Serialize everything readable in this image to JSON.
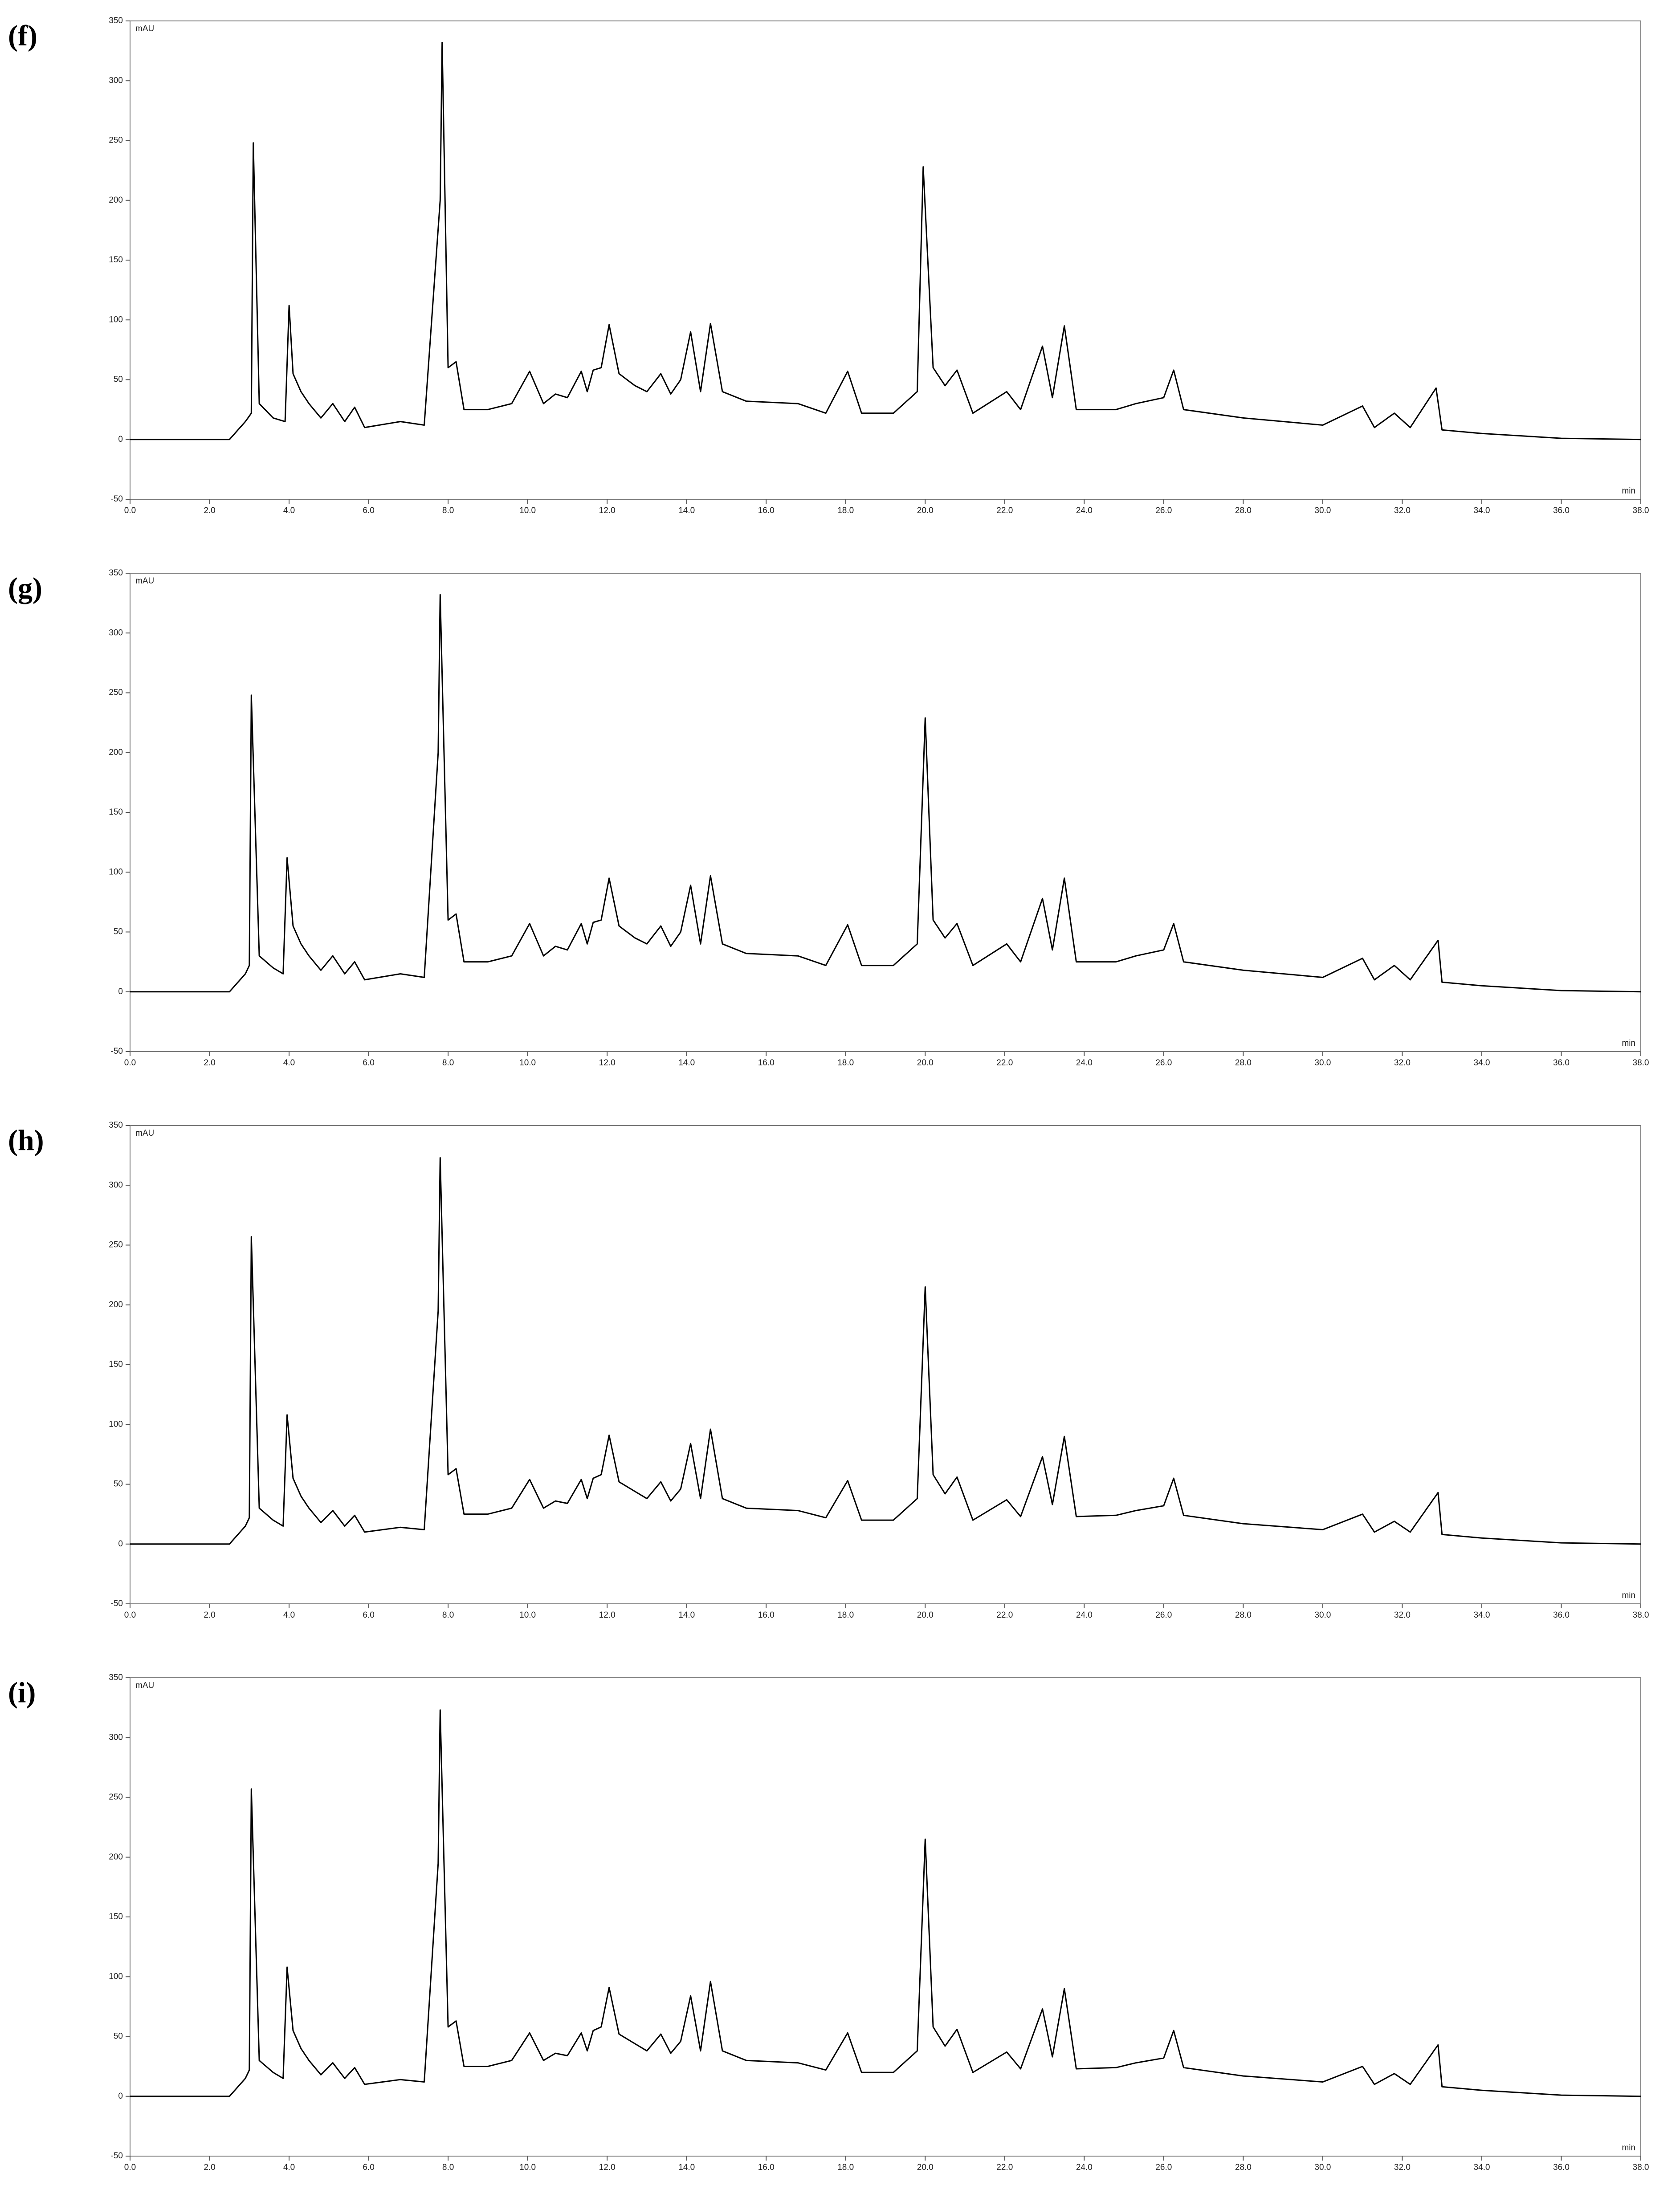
{
  "chart_data": [
    {
      "type": "line",
      "panel_label": "(f)",
      "ylabel": "mAU",
      "xlabel": "min",
      "xlim": [
        0,
        38
      ],
      "ylim": [
        -50,
        350
      ],
      "yticks": [
        -50,
        0,
        50,
        100,
        150,
        200,
        250,
        300,
        350
      ],
      "xticks": [
        {
          "value": 0,
          "label": "0.0"
        },
        {
          "value": 2,
          "label": "2.0"
        },
        {
          "value": 4,
          "label": "4.0"
        },
        {
          "value": 6,
          "label": "6.0"
        },
        {
          "value": 8,
          "label": "8.0"
        },
        {
          "value": 10,
          "label": "10.0"
        },
        {
          "value": 12,
          "label": "12.0"
        },
        {
          "value": 14,
          "label": "14.0"
        },
        {
          "value": 16,
          "label": "16.0"
        },
        {
          "value": 18,
          "label": "18.0"
        },
        {
          "value": 20,
          "label": "20.0"
        },
        {
          "value": 22,
          "label": "22.0"
        },
        {
          "value": 24,
          "label": "24.0"
        },
        {
          "value": 26,
          "label": "26.0"
        },
        {
          "value": 28,
          "label": "28.0"
        },
        {
          "value": 30,
          "label": "30.0"
        },
        {
          "value": 32,
          "label": "32.0"
        },
        {
          "value": 34,
          "label": "34.0"
        },
        {
          "value": 36,
          "label": "36.0"
        },
        {
          "value": 38,
          "label": "38.0"
        }
      ],
      "color": "#000000",
      "x": [
        0,
        2.5,
        2.9,
        3.05,
        3.1,
        3.25,
        3.6,
        3.9,
        4.0,
        4.1,
        4.3,
        4.5,
        4.8,
        5.1,
        5.4,
        5.65,
        5.9,
        6.8,
        7.4,
        7.8,
        7.85,
        8.0,
        8.2,
        8.4,
        9.0,
        9.6,
        10.05,
        10.4,
        10.7,
        11.0,
        11.35,
        11.5,
        11.65,
        11.85,
        12.05,
        12.3,
        12.7,
        13.0,
        13.35,
        13.6,
        13.85,
        14.1,
        14.35,
        14.6,
        14.9,
        15.5,
        16.8,
        17.5,
        18.05,
        18.4,
        19.2,
        19.8,
        19.95,
        20.2,
        20.5,
        20.8,
        21.2,
        22.05,
        22.4,
        22.95,
        23.2,
        23.5,
        23.8,
        24.8,
        25.3,
        26.0,
        26.25,
        26.5,
        28.0,
        30.0,
        31.0,
        31.3,
        31.8,
        32.2,
        32.85,
        33.0,
        34.0,
        36.0,
        38.0
      ],
      "values": [
        0,
        0,
        15,
        22,
        248,
        30,
        18,
        15,
        112,
        55,
        40,
        30,
        18,
        30,
        15,
        27,
        10,
        15,
        12,
        200,
        332,
        60,
        65,
        25,
        25,
        30,
        57,
        30,
        38,
        35,
        57,
        40,
        58,
        60,
        96,
        55,
        45,
        40,
        55,
        38,
        50,
        90,
        40,
        97,
        40,
        32,
        30,
        22,
        57,
        22,
        22,
        40,
        228,
        60,
        45,
        58,
        22,
        40,
        25,
        78,
        35,
        95,
        25,
        25,
        30,
        35,
        58,
        25,
        18,
        12,
        28,
        10,
        22,
        10,
        43,
        8,
        5,
        1,
        0
      ]
    },
    {
      "type": "line",
      "panel_label": "(g)",
      "ylabel": "mAU",
      "xlabel": "min",
      "xlim": [
        0,
        38
      ],
      "ylim": [
        -50,
        350
      ],
      "yticks": [
        -50,
        0,
        50,
        100,
        150,
        200,
        250,
        300,
        350
      ],
      "xticks": [
        {
          "value": 0,
          "label": "0.0"
        },
        {
          "value": 2,
          "label": "2.0"
        },
        {
          "value": 4,
          "label": "4.0"
        },
        {
          "value": 6,
          "label": "6.0"
        },
        {
          "value": 8,
          "label": "8.0"
        },
        {
          "value": 10,
          "label": "10.0"
        },
        {
          "value": 12,
          "label": "12.0"
        },
        {
          "value": 14,
          "label": "14.0"
        },
        {
          "value": 16,
          "label": "16.0"
        },
        {
          "value": 18,
          "label": "18.0"
        },
        {
          "value": 20,
          "label": "20.0"
        },
        {
          "value": 22,
          "label": "22.0"
        },
        {
          "value": 24,
          "label": "24.0"
        },
        {
          "value": 26,
          "label": "26.0"
        },
        {
          "value": 28,
          "label": "28.0"
        },
        {
          "value": 30,
          "label": "30.0"
        },
        {
          "value": 32,
          "label": "32.0"
        },
        {
          "value": 34,
          "label": "34.0"
        },
        {
          "value": 36,
          "label": "36.0"
        },
        {
          "value": 38,
          "label": "38.0"
        }
      ],
      "color": "#000000",
      "x": [
        0,
        2.5,
        2.9,
        3.0,
        3.05,
        3.25,
        3.6,
        3.85,
        3.95,
        4.1,
        4.3,
        4.5,
        4.8,
        5.1,
        5.4,
        5.65,
        5.9,
        6.8,
        7.4,
        7.75,
        7.8,
        8.0,
        8.2,
        8.4,
        9.0,
        9.6,
        10.05,
        10.4,
        10.7,
        11.0,
        11.35,
        11.5,
        11.65,
        11.85,
        12.05,
        12.3,
        12.7,
        13.0,
        13.35,
        13.6,
        13.85,
        14.1,
        14.35,
        14.6,
        14.9,
        15.5,
        16.8,
        17.5,
        18.05,
        18.4,
        19.2,
        19.8,
        20.0,
        20.2,
        20.5,
        20.8,
        21.2,
        22.05,
        22.4,
        22.95,
        23.2,
        23.5,
        23.8,
        24.8,
        25.3,
        26.0,
        26.25,
        26.5,
        28.0,
        30.0,
        31.0,
        31.3,
        31.8,
        32.2,
        32.9,
        33.0,
        34.0,
        36.0,
        38.0
      ],
      "values": [
        0,
        0,
        15,
        22,
        248,
        30,
        20,
        15,
        112,
        55,
        40,
        30,
        18,
        30,
        15,
        25,
        10,
        15,
        12,
        200,
        332,
        60,
        65,
        25,
        25,
        30,
        57,
        30,
        38,
        35,
        57,
        40,
        58,
        60,
        95,
        55,
        45,
        40,
        55,
        38,
        50,
        89,
        40,
        97,
        40,
        32,
        30,
        22,
        56,
        22,
        22,
        40,
        229,
        60,
        45,
        57,
        22,
        40,
        25,
        78,
        35,
        95,
        25,
        25,
        30,
        35,
        57,
        25,
        18,
        12,
        28,
        10,
        22,
        10,
        43,
        8,
        5,
        1,
        0
      ]
    },
    {
      "type": "line",
      "panel_label": "(h)",
      "ylabel": "mAU",
      "xlabel": "min",
      "xlim": [
        0,
        38
      ],
      "ylim": [
        -50,
        350
      ],
      "yticks": [
        -50,
        0,
        50,
        100,
        150,
        200,
        250,
        300,
        350
      ],
      "xticks": [
        {
          "value": 0,
          "label": "0.0"
        },
        {
          "value": 2,
          "label": "2.0"
        },
        {
          "value": 4,
          "label": "4.0"
        },
        {
          "value": 6,
          "label": "6.0"
        },
        {
          "value": 8,
          "label": "8.0"
        },
        {
          "value": 10,
          "label": "10.0"
        },
        {
          "value": 12,
          "label": "12.0"
        },
        {
          "value": 14,
          "label": "14.0"
        },
        {
          "value": 16,
          "label": "16.0"
        },
        {
          "value": 18,
          "label": "18.0"
        },
        {
          "value": 20,
          "label": "20.0"
        },
        {
          "value": 22,
          "label": "22.0"
        },
        {
          "value": 24,
          "label": "24.0"
        },
        {
          "value": 26,
          "label": "26.0"
        },
        {
          "value": 28,
          "label": "28.0"
        },
        {
          "value": 30,
          "label": "30.0"
        },
        {
          "value": 32,
          "label": "32.0"
        },
        {
          "value": 34,
          "label": "34.0"
        },
        {
          "value": 36,
          "label": "36.0"
        },
        {
          "value": 38,
          "label": "38.0"
        }
      ],
      "color": "#000000",
      "x": [
        0,
        2.5,
        2.9,
        3.0,
        3.05,
        3.25,
        3.6,
        3.85,
        3.95,
        4.1,
        4.3,
        4.5,
        4.8,
        5.1,
        5.4,
        5.65,
        5.9,
        6.8,
        7.4,
        7.75,
        7.8,
        8.0,
        8.2,
        8.4,
        9.0,
        9.6,
        10.05,
        10.4,
        10.7,
        11.0,
        11.35,
        11.5,
        11.65,
        11.85,
        12.05,
        12.3,
        12.7,
        13.0,
        13.35,
        13.6,
        13.85,
        14.1,
        14.35,
        14.6,
        14.9,
        15.5,
        16.8,
        17.5,
        18.05,
        18.4,
        19.2,
        19.8,
        20.0,
        20.2,
        20.5,
        20.8,
        21.2,
        22.05,
        22.4,
        22.95,
        23.2,
        23.5,
        23.8,
        24.8,
        25.3,
        26.0,
        26.25,
        26.5,
        28.0,
        30.0,
        31.0,
        31.3,
        31.8,
        32.2,
        32.9,
        33.0,
        34.0,
        36.0,
        38.0
      ],
      "values": [
        0,
        0,
        15,
        22,
        257,
        30,
        20,
        15,
        108,
        55,
        40,
        30,
        18,
        28,
        15,
        24,
        10,
        14,
        12,
        195,
        323,
        58,
        63,
        25,
        25,
        30,
        54,
        30,
        36,
        34,
        54,
        38,
        55,
        58,
        91,
        52,
        44,
        38,
        52,
        36,
        46,
        84,
        38,
        96,
        38,
        30,
        28,
        22,
        53,
        20,
        20,
        38,
        215,
        58,
        42,
        56,
        20,
        37,
        23,
        73,
        33,
        90,
        23,
        24,
        28,
        32,
        55,
        24,
        17,
        12,
        25,
        10,
        19,
        10,
        43,
        8,
        5,
        1,
        0
      ]
    },
    {
      "type": "line",
      "panel_label": "(i)",
      "ylabel": "mAU",
      "xlabel": "min",
      "xlim": [
        0,
        38
      ],
      "ylim": [
        -50,
        350
      ],
      "yticks": [
        -50,
        0,
        50,
        100,
        150,
        200,
        250,
        300,
        350
      ],
      "xticks": [
        {
          "value": 0,
          "label": "0.0"
        },
        {
          "value": 2,
          "label": "2.0"
        },
        {
          "value": 4,
          "label": "4.0"
        },
        {
          "value": 6,
          "label": "6.0"
        },
        {
          "value": 8,
          "label": "8.0"
        },
        {
          "value": 10,
          "label": "10.0"
        },
        {
          "value": 12,
          "label": "12.0"
        },
        {
          "value": 14,
          "label": "14.0"
        },
        {
          "value": 16,
          "label": "16.0"
        },
        {
          "value": 18,
          "label": "18.0"
        },
        {
          "value": 20,
          "label": "20.0"
        },
        {
          "value": 22,
          "label": "22.0"
        },
        {
          "value": 24,
          "label": "24.0"
        },
        {
          "value": 26,
          "label": "26.0"
        },
        {
          "value": 28,
          "label": "28.0"
        },
        {
          "value": 30,
          "label": "30.0"
        },
        {
          "value": 32,
          "label": "32.0"
        },
        {
          "value": 34,
          "label": "34.0"
        },
        {
          "value": 36,
          "label": "36.0"
        },
        {
          "value": 38,
          "label": "38.0"
        }
      ],
      "color": "#000000",
      "x": [
        0,
        2.5,
        2.9,
        3.0,
        3.05,
        3.25,
        3.6,
        3.85,
        3.95,
        4.1,
        4.3,
        4.5,
        4.8,
        5.1,
        5.4,
        5.65,
        5.9,
        6.8,
        7.4,
        7.75,
        7.8,
        8.0,
        8.2,
        8.4,
        9.0,
        9.6,
        10.05,
        10.4,
        10.7,
        11.0,
        11.35,
        11.5,
        11.65,
        11.85,
        12.05,
        12.3,
        12.7,
        13.0,
        13.35,
        13.6,
        13.85,
        14.1,
        14.35,
        14.6,
        14.9,
        15.5,
        16.8,
        17.5,
        18.05,
        18.4,
        19.2,
        19.8,
        20.0,
        20.2,
        20.5,
        20.8,
        21.2,
        22.05,
        22.4,
        22.95,
        23.2,
        23.5,
        23.8,
        24.8,
        25.3,
        26.0,
        26.25,
        26.5,
        28.0,
        30.0,
        31.0,
        31.3,
        31.8,
        32.2,
        32.9,
        33.0,
        34.0,
        36.0,
        38.0
      ],
      "values": [
        0,
        0,
        15,
        22,
        257,
        30,
        20,
        15,
        108,
        55,
        40,
        30,
        18,
        28,
        15,
        24,
        10,
        14,
        12,
        195,
        323,
        58,
        63,
        25,
        25,
        30,
        53,
        30,
        36,
        34,
        53,
        38,
        55,
        58,
        91,
        52,
        44,
        38,
        52,
        36,
        46,
        84,
        38,
        96,
        38,
        30,
        28,
        22,
        53,
        20,
        20,
        38,
        215,
        58,
        42,
        56,
        20,
        37,
        23,
        73,
        33,
        90,
        23,
        24,
        28,
        32,
        55,
        24,
        17,
        12,
        25,
        10,
        19,
        10,
        43,
        8,
        5,
        1,
        0
      ]
    }
  ]
}
